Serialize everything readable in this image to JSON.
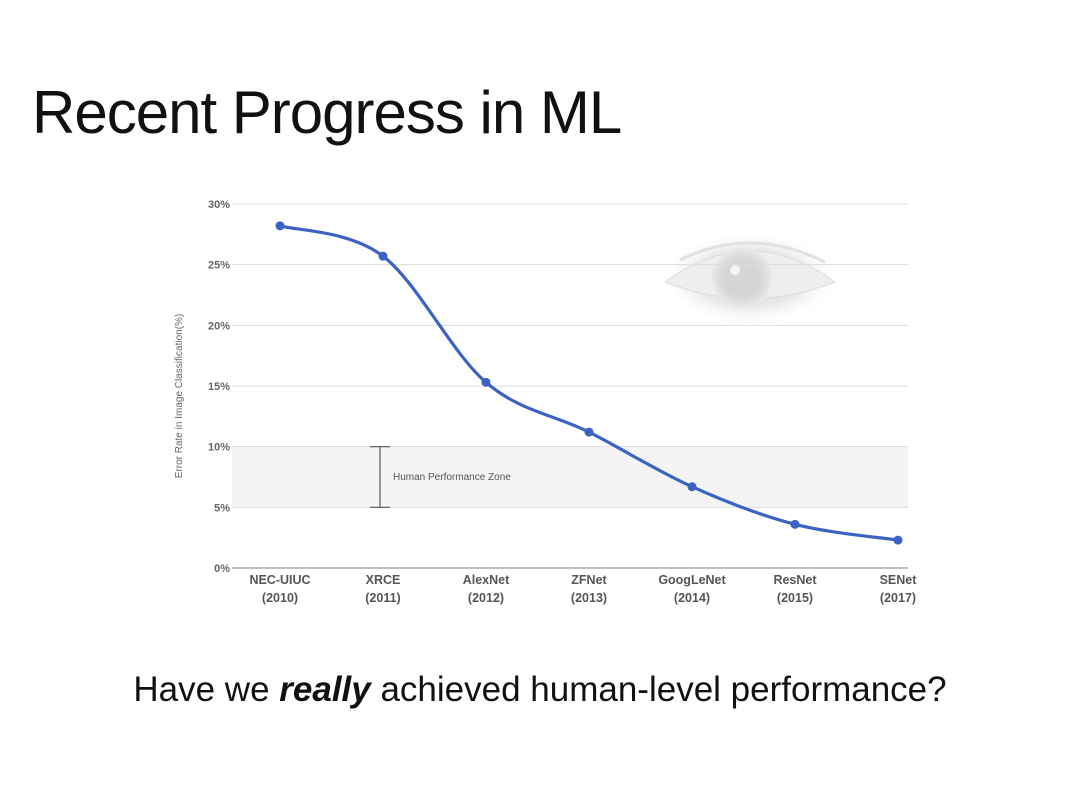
{
  "slide": {
    "title": "Recent Progress in ML",
    "question_pre": "Have we ",
    "question_em": "really",
    "question_post": " achieved human-level performance?"
  },
  "chart_data": {
    "type": "line",
    "ylabel": "Error Rate in Image Classification(%)",
    "ylim": [
      0,
      30
    ],
    "yticks": [
      {
        "value": 0,
        "label": "0%"
      },
      {
        "value": 5,
        "label": "5%"
      },
      {
        "value": 10,
        "label": "10%"
      },
      {
        "value": 15,
        "label": "15%"
      },
      {
        "value": 20,
        "label": "20%"
      },
      {
        "value": 25,
        "label": "25%"
      },
      {
        "value": 30,
        "label": "30%"
      }
    ],
    "categories": [
      {
        "name": "NEC-UIUC",
        "year": "(2010)"
      },
      {
        "name": "XRCE",
        "year": "(2011)"
      },
      {
        "name": "AlexNet",
        "year": "(2012)"
      },
      {
        "name": "ZFNet",
        "year": "(2013)"
      },
      {
        "name": "GoogLeNet",
        "year": "(2014)"
      },
      {
        "name": "ResNet",
        "year": "(2015)"
      },
      {
        "name": "SENet",
        "year": "(2017)"
      }
    ],
    "series": [
      {
        "values": [
          28.2,
          25.7,
          15.3,
          11.2,
          6.7,
          3.6,
          2.3
        ],
        "color": "#3b63c4"
      }
    ],
    "band": {
      "from": 5,
      "to": 10,
      "label": "Human Performance Zone"
    },
    "grid": true,
    "decoration": "eye-icon"
  }
}
